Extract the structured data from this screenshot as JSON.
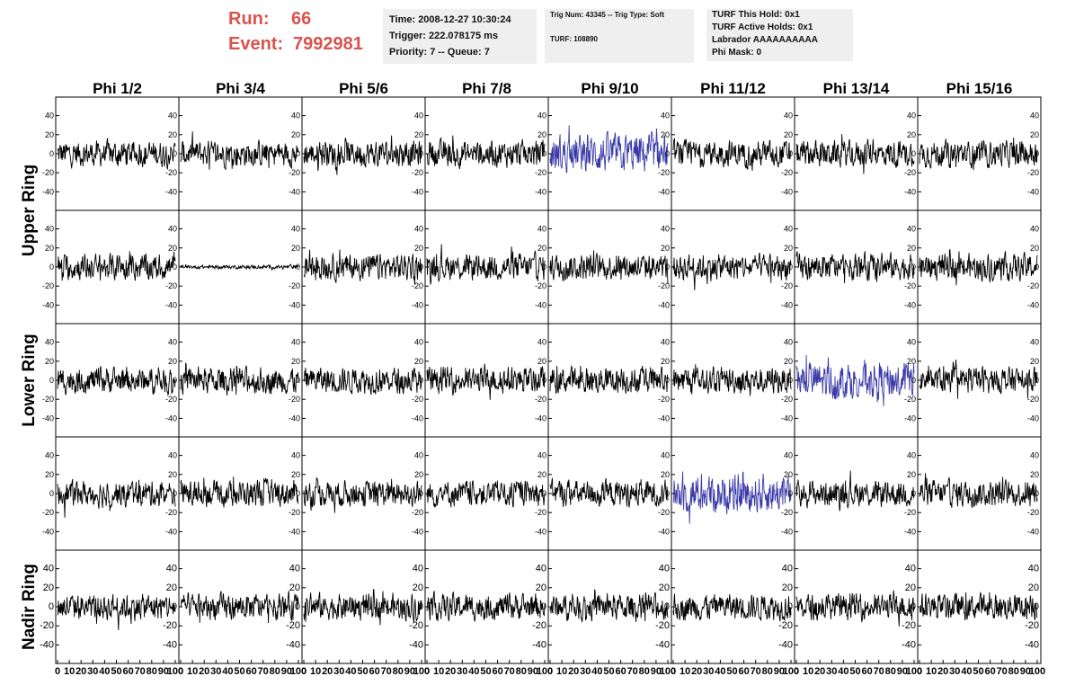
{
  "header": {
    "run_label": "Run:",
    "run_value": "66",
    "event_label": "Event:",
    "event_value": "7992981",
    "time": "Time: 2008-12-27 10:30:24",
    "trigger": "Trigger: 222.078175 ms",
    "priority": "Priority: 7 -- Queue: 7",
    "trig_num": "Trig Num: 43345 -- Trig Type: Soft",
    "turf": "TURF: 108890",
    "turf_this_hold": "TURF This Hold: 0x1",
    "turf_active_holds": "TURF Active Holds: 0x1",
    "labrador": "Labrador AAAAAAAAAA",
    "phi_mask": "Phi Mask: 0"
  },
  "chart_data": {
    "type": "line",
    "title": "",
    "columns": [
      "Phi 1/2",
      "Phi 3/4",
      "Phi 5/6",
      "Phi 7/8",
      "Phi 9/10",
      "Phi 11/12",
      "Phi 13/14",
      "Phi 15/16"
    ],
    "ring_labels": [
      "Upper Ring",
      "Lower Ring",
      "Nadir Ring"
    ],
    "rows": 5,
    "xlim": [
      0,
      100
    ],
    "ylim": [
      -50,
      50
    ],
    "yticks": [
      40,
      20,
      0,
      -20,
      -40
    ],
    "xtick_labels": [
      "0",
      "10",
      "20",
      "30",
      "40",
      "50",
      "60",
      "70",
      "80",
      "90",
      "100"
    ],
    "samples": 260,
    "trace_color": "#000000",
    "highlight_color": "#3a3aa8",
    "highlighted_panels": [
      [
        0,
        4
      ],
      [
        2,
        6
      ],
      [
        3,
        5
      ]
    ],
    "quiet_panels": [
      [
        1,
        1
      ]
    ]
  }
}
